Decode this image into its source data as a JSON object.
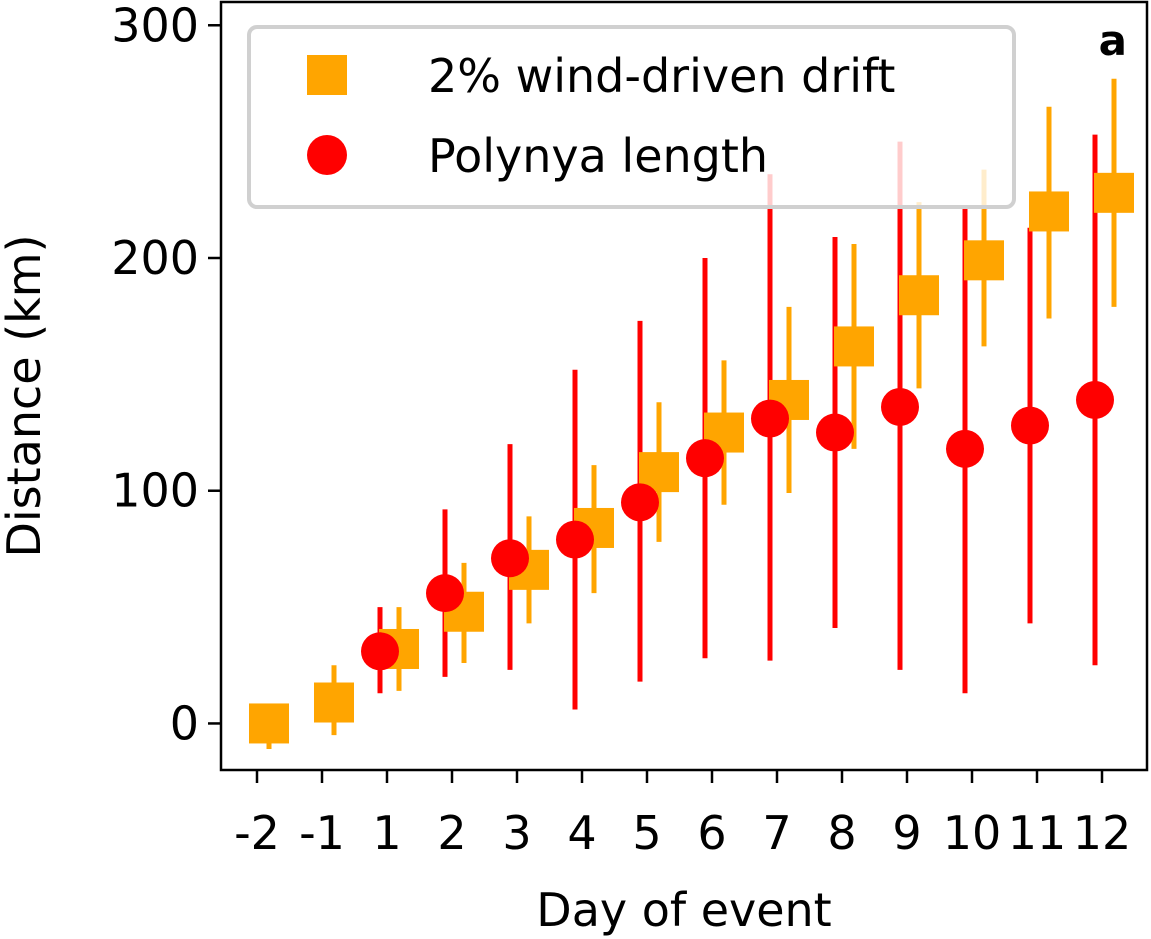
{
  "chart_data": {
    "type": "scatter",
    "panel_label": "a",
    "xlabel": "Day of event",
    "ylabel": "Distance (km)",
    "categories": [
      "-2",
      "-1",
      "1",
      "2",
      "3",
      "4",
      "5",
      "6",
      "7",
      "8",
      "9",
      "10",
      "11",
      "12"
    ],
    "ylim": [
      -20,
      310
    ],
    "yticks": [
      0,
      100,
      200,
      300
    ],
    "grid": false,
    "legend_position": "top-left",
    "series": [
      {
        "name": "2% wind-driven drift",
        "marker": "square",
        "color": "#FFA500",
        "values": [
          0,
          9,
          32,
          48,
          66,
          84,
          108,
          125,
          139,
          162,
          184,
          199,
          220,
          228
        ],
        "err_low": [
          -11,
          -5,
          14,
          26,
          43,
          56,
          78,
          94,
          99,
          118,
          144,
          162,
          174,
          179
        ],
        "err_high": [
          8,
          25,
          50,
          69,
          89,
          111,
          138,
          156,
          179,
          206,
          224,
          238,
          265,
          277
        ]
      },
      {
        "name": "Polynya length",
        "marker": "circle",
        "color": "#FF0000",
        "values": [
          null,
          null,
          31,
          56,
          71,
          79,
          95,
          114,
          131,
          125,
          136,
          118,
          128,
          139
        ],
        "err_low": [
          null,
          null,
          13,
          20,
          23,
          6,
          18,
          28,
          27,
          41,
          23,
          13,
          43,
          25
        ],
        "err_high": [
          null,
          null,
          50,
          92,
          120,
          152,
          173,
          200,
          236,
          209,
          250,
          222,
          213,
          253
        ]
      }
    ]
  }
}
